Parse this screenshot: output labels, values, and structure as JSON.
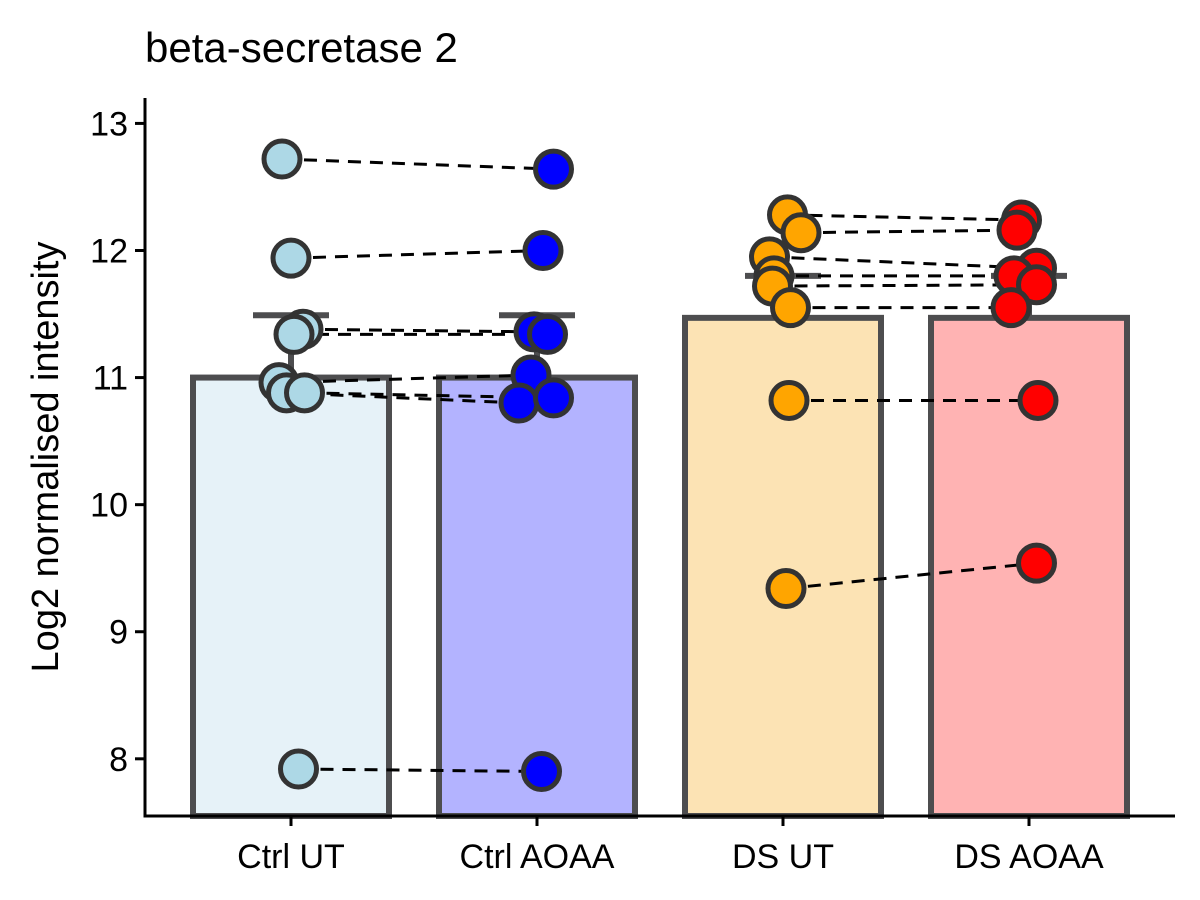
{
  "chart_data": {
    "type": "bar",
    "title": "beta-secretase 2",
    "xlabel": "",
    "ylabel": "Log2 normalised intensity",
    "ylim": [
      7.55,
      13.2
    ],
    "yticks": [
      8,
      9,
      10,
      11,
      12,
      13
    ],
    "categories": [
      "Ctrl UT",
      "Ctrl AOAA",
      "DS UT",
      "DS AOAA"
    ],
    "bar_fill_colors": [
      "#e6f2f8",
      "#b3b3ff",
      "#fce3b4",
      "#ffb3b3"
    ],
    "point_colors": [
      "#add8e6",
      "#0000ff",
      "#ffa500",
      "#ff0000"
    ],
    "bar_outline_color": "#4d4d4f",
    "values": [
      11.0,
      11.0,
      11.47,
      11.47
    ],
    "error_upper": [
      11.49,
      11.49,
      11.8,
      11.8
    ],
    "series": [
      {
        "group": "Ctrl",
        "categories": [
          "Ctrl UT",
          "Ctrl AOAA"
        ],
        "pairs": [
          [
            12.72,
            12.64
          ],
          [
            11.94,
            12.0
          ],
          [
            11.38,
            11.36
          ],
          [
            11.34,
            11.34
          ],
          [
            10.96,
            11.02
          ],
          [
            10.88,
            10.8
          ],
          [
            10.88,
            10.84
          ],
          [
            7.92,
            7.9
          ]
        ],
        "jitter": [
          [
            -0.06,
            0.11
          ],
          [
            0.0,
            0.04
          ],
          [
            0.08,
            -0.02
          ],
          [
            0.02,
            0.07
          ],
          [
            -0.08,
            -0.04
          ],
          [
            -0.03,
            -0.12
          ],
          [
            0.09,
            0.11
          ],
          [
            0.05,
            0.03
          ]
        ]
      },
      {
        "group": "DS",
        "categories": [
          "DS UT",
          "DS AOAA"
        ],
        "pairs": [
          [
            12.28,
            12.24
          ],
          [
            12.14,
            12.16
          ],
          [
            11.95,
            11.86
          ],
          [
            11.8,
            11.8
          ],
          [
            11.72,
            11.73
          ],
          [
            11.55,
            11.55
          ],
          [
            10.82,
            10.82
          ],
          [
            9.34,
            9.54
          ]
        ],
        "jitter": [
          [
            0.03,
            -0.05
          ],
          [
            0.12,
            -0.08
          ],
          [
            -0.09,
            0.05
          ],
          [
            -0.06,
            -0.1
          ],
          [
            -0.07,
            0.05
          ],
          [
            0.05,
            -0.12
          ],
          [
            0.04,
            0.06
          ],
          [
            0.02,
            0.05
          ]
        ]
      }
    ]
  }
}
